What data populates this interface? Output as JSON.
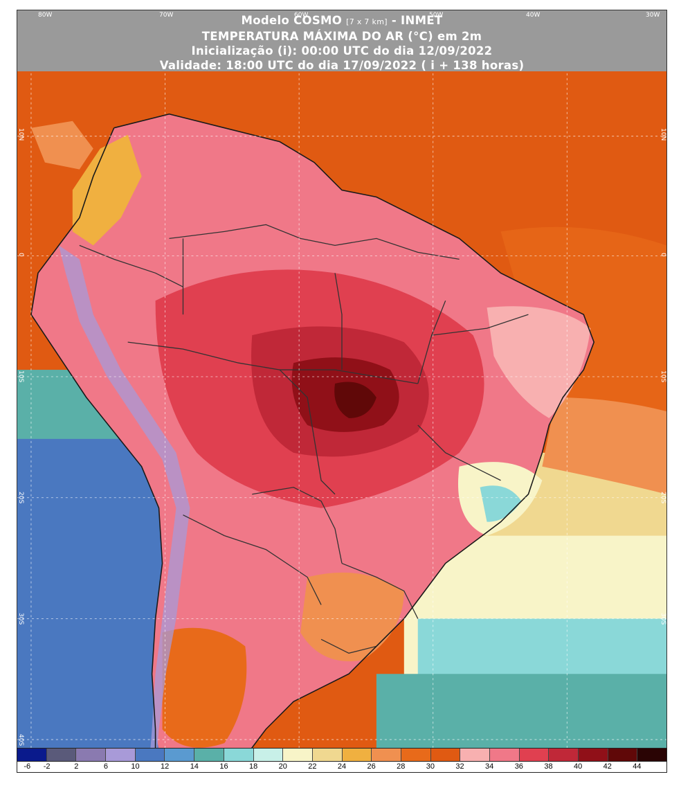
{
  "header": {
    "line1_main": "Modelo COSMO",
    "line1_small": "[7 x 7 km]",
    "line1_tail": "- INMET",
    "line2": "TEMPERATURA MÁXIMA DO AR (°C) em 2m",
    "line3": "Inicialização (i): 00:00 UTC do dia 12/09/2022",
    "line4": "Validade: 18:00 UTC do dia 17/09/2022 ( i + 138 horas)"
  },
  "longitude_labels": [
    "80W",
    "70W",
    "60W",
    "50W",
    "40W",
    "30W"
  ],
  "latitude_labels": [
    "10N",
    "0",
    "10S",
    "20S",
    "30S",
    "40S"
  ],
  "legend": {
    "labels": [
      "-6",
      "-2",
      "2",
      "6",
      "10",
      "12",
      "14",
      "16",
      "18",
      "20",
      "22",
      "24",
      "26",
      "28",
      "30",
      "32",
      "34",
      "36",
      "38",
      "40",
      "42",
      "44"
    ],
    "colors": [
      "#0a1a8c",
      "#5a5a7a",
      "#8a7ab0",
      "#a89ad8",
      "#4a78c0",
      "#5a9ad0",
      "#5ab0a8",
      "#8ad8d8",
      "#c8f0e8",
      "#f8f4c8",
      "#f0d890",
      "#f0b040",
      "#f09050",
      "#e86a1a",
      "#e05a12",
      "#f8b0b0",
      "#f07888",
      "#e04050",
      "#c02838",
      "#901018",
      "#600808",
      "#2a0404"
    ]
  }
}
